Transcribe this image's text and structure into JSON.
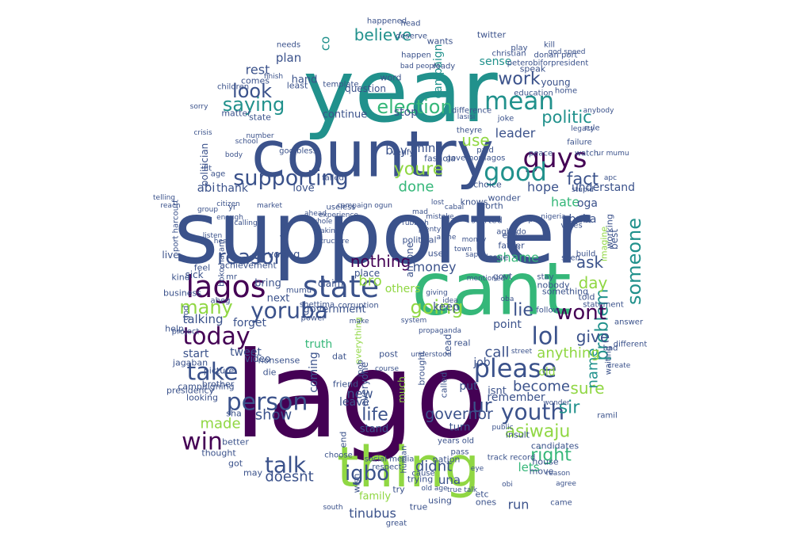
{
  "palette": {
    "dark_purple": "#440154",
    "indigo": "#3b528b",
    "slate": "#31688e",
    "teal": "#21918c",
    "green": "#35b779",
    "lime": "#90d743",
    "yellow": "#c9e020"
  },
  "words": [
    {
      "text": "lago",
      "color": "dark_purple"
    },
    {
      "text": "supporter",
      "color": "indigo"
    },
    {
      "text": "year",
      "color": "teal"
    },
    {
      "text": "country",
      "color": "indigo"
    },
    {
      "text": "cant",
      "color": "green"
    },
    {
      "text": "thing",
      "color": "lime"
    },
    {
      "text": "state",
      "color": "indigo"
    },
    {
      "text": "lagos",
      "color": "dark_purple"
    },
    {
      "text": "supporting",
      "color": "indigo"
    },
    {
      "text": "person",
      "color": "indigo"
    },
    {
      "text": "youth",
      "color": "indigo"
    },
    {
      "text": "please",
      "color": "indigo"
    },
    {
      "text": "yoruba",
      "color": "indigo"
    },
    {
      "text": "today",
      "color": "dark_purple"
    },
    {
      "text": "take",
      "color": "indigo"
    },
    {
      "text": "guys",
      "color": "dark_purple"
    },
    {
      "text": "good",
      "color": "teal"
    },
    {
      "text": "mean",
      "color": "teal"
    },
    {
      "text": "lol",
      "color": "indigo"
    },
    {
      "text": "igbo",
      "color": "indigo"
    },
    {
      "text": "win",
      "color": "dark_purple"
    },
    {
      "text": "election",
      "color": "green"
    },
    {
      "text": "saying",
      "color": "teal"
    },
    {
      "text": "reason",
      "color": "indigo"
    },
    {
      "text": "someone",
      "color": "teal"
    },
    {
      "text": "problem",
      "color": "teal"
    },
    {
      "text": "work",
      "color": "indigo"
    },
    {
      "text": "look",
      "color": "indigo"
    },
    {
      "text": "many",
      "color": "lime"
    },
    {
      "text": "talk",
      "color": "indigo"
    },
    {
      "text": "going",
      "color": "lime"
    },
    {
      "text": "wont",
      "color": "dark_purple"
    },
    {
      "text": "nothing",
      "color": "dark_purple"
    },
    {
      "text": "youre",
      "color": "lime"
    },
    {
      "text": "believe",
      "color": "teal"
    },
    {
      "text": "politic",
      "color": "teal"
    },
    {
      "text": "fact",
      "color": "indigo"
    },
    {
      "text": "show",
      "color": "indigo"
    },
    {
      "text": "life",
      "color": "indigo"
    },
    {
      "text": "asiwaju",
      "color": "lime"
    },
    {
      "text": "sir",
      "color": "teal"
    },
    {
      "text": "right",
      "color": "green"
    },
    {
      "text": "become",
      "color": "indigo"
    },
    {
      "text": "sure",
      "color": "lime"
    },
    {
      "text": "lie",
      "color": "indigo"
    },
    {
      "text": "day",
      "color": "lime"
    },
    {
      "text": "ask",
      "color": "indigo"
    },
    {
      "text": "give",
      "color": "indigo"
    },
    {
      "text": "name",
      "color": "teal"
    },
    {
      "text": "anything",
      "color": "lime"
    },
    {
      "text": "bro",
      "color": "lime"
    },
    {
      "text": "call",
      "color": "indigo"
    },
    {
      "text": "done",
      "color": "green"
    },
    {
      "text": "use",
      "color": "lime"
    },
    {
      "text": "governor",
      "color": "indigo"
    },
    {
      "text": "made",
      "color": "lime"
    },
    {
      "text": "doesnt",
      "color": "indigo"
    },
    {
      "text": "didnt",
      "color": "indigo"
    },
    {
      "text": "tinubus",
      "color": "indigo"
    },
    {
      "text": "new",
      "color": "indigo"
    },
    {
      "text": "ur",
      "color": "indigo"
    },
    {
      "text": "co",
      "color": "teal"
    },
    {
      "text": "rest",
      "color": "indigo"
    },
    {
      "text": "plan",
      "color": "indigo"
    },
    {
      "text": "hope",
      "color": "indigo"
    },
    {
      "text": "abi",
      "color": "indigo"
    },
    {
      "text": "leader",
      "color": "indigo"
    },
    {
      "text": "hate",
      "color": "green"
    },
    {
      "text": "sense",
      "color": "teal"
    },
    {
      "text": "campaign",
      "color": "teal"
    },
    {
      "text": "mind",
      "color": "indigo"
    },
    {
      "text": "boy",
      "color": "indigo"
    },
    {
      "text": "talking",
      "color": "indigo"
    },
    {
      "text": "forget",
      "color": "indigo"
    },
    {
      "text": "start",
      "color": "indigo"
    },
    {
      "text": "tweet",
      "color": "indigo"
    },
    {
      "text": "money",
      "color": "indigo"
    },
    {
      "text": "shame",
      "color": "green"
    },
    {
      "text": "baba",
      "color": "indigo"
    },
    {
      "text": "oga",
      "color": "indigo"
    },
    {
      "text": "understand",
      "color": "indigo"
    },
    {
      "text": "old",
      "color": "lime"
    },
    {
      "text": "truth",
      "color": "green"
    },
    {
      "text": "stop",
      "color": "indigo"
    },
    {
      "text": "continue",
      "color": "indigo"
    },
    {
      "text": "hand",
      "color": "indigo"
    },
    {
      "text": "thank",
      "color": "indigo"
    },
    {
      "text": "love",
      "color": "indigo"
    },
    {
      "text": "voting",
      "color": "indigo"
    },
    {
      "text": "others",
      "color": "lime"
    },
    {
      "text": "keep",
      "color": "indigo"
    },
    {
      "text": "coming",
      "color": "indigo"
    },
    {
      "text": "leave",
      "color": "indigo"
    },
    {
      "text": "stand",
      "color": "indigo"
    },
    {
      "text": "turn",
      "color": "indigo"
    },
    {
      "text": "lets",
      "color": "green"
    },
    {
      "text": "run",
      "color": "indigo"
    },
    {
      "text": "una",
      "color": "indigo"
    },
    {
      "text": "family",
      "color": "lime"
    },
    {
      "text": "isnt",
      "color": "indigo"
    },
    {
      "text": "remember",
      "color": "indigo"
    },
    {
      "text": "job",
      "color": "indigo"
    },
    {
      "text": "put",
      "color": "indigo"
    },
    {
      "text": "point",
      "color": "indigo"
    },
    {
      "text": "government",
      "color": "indigo"
    },
    {
      "text": "bring",
      "color": "indigo"
    },
    {
      "text": "next",
      "color": "indigo"
    },
    {
      "text": "everyone",
      "color": "indigo"
    },
    {
      "text": "video",
      "color": "indigo"
    },
    {
      "text": "politician",
      "color": "indigo"
    },
    {
      "text": "claim",
      "color": "indigo"
    },
    {
      "text": "place",
      "color": "indigo"
    },
    {
      "text": "sick",
      "color": "indigo"
    },
    {
      "text": "live",
      "color": "indigo"
    },
    {
      "text": "kind",
      "color": "indigo"
    },
    {
      "text": "achievement",
      "color": "indigo"
    },
    {
      "text": "business",
      "color": "indigo"
    },
    {
      "text": "help",
      "color": "indigo"
    },
    {
      "text": "jagaban",
      "color": "indigo"
    },
    {
      "text": "presidency",
      "color": "indigo"
    },
    {
      "text": "young",
      "color": "indigo"
    },
    {
      "text": "state",
      "color": "indigo"
    },
    {
      "text": "matter",
      "color": "indigo"
    },
    {
      "text": "question",
      "color": "indigo"
    },
    {
      "text": "word",
      "color": "indigo"
    },
    {
      "text": "least",
      "color": "indigo"
    },
    {
      "text": "comes",
      "color": "indigo"
    },
    {
      "text": "twitter",
      "color": "indigo"
    },
    {
      "text": "wants",
      "color": "indigo"
    },
    {
      "text": "speak",
      "color": "indigo"
    },
    {
      "text": "fashola",
      "color": "indigo"
    },
    {
      "text": "choice",
      "color": "indigo"
    },
    {
      "text": "wonder",
      "color": "indigo"
    },
    {
      "text": "north",
      "color": "indigo"
    },
    {
      "text": "started",
      "color": "indigo"
    },
    {
      "text": "knows",
      "color": "indigo"
    },
    {
      "text": "evil",
      "color": "indigo"
    },
    {
      "text": "father",
      "color": "indigo"
    },
    {
      "text": "best",
      "color": "indigo"
    },
    {
      "text": "imagine",
      "color": "lime"
    },
    {
      "text": "working",
      "color": "indigo"
    },
    {
      "text": "something",
      "color": "indigo"
    },
    {
      "text": "told",
      "color": "indigo"
    },
    {
      "text": "nobody",
      "color": "indigo"
    },
    {
      "text": "political",
      "color": "indigo"
    },
    {
      "text": "govt",
      "color": "indigo"
    },
    {
      "text": "issue",
      "color": "indigo"
    },
    {
      "text": "used",
      "color": "indigo"
    },
    {
      "text": "read",
      "color": "indigo"
    },
    {
      "text": "anyone",
      "color": "indigo"
    },
    {
      "text": "everything",
      "color": "lime"
    },
    {
      "text": "brought",
      "color": "indigo"
    },
    {
      "text": "called",
      "color": "indigo"
    },
    {
      "text": "much",
      "color": "lime"
    },
    {
      "text": "real",
      "color": "indigo"
    },
    {
      "text": "post",
      "color": "indigo"
    },
    {
      "text": "insult",
      "color": "indigo"
    },
    {
      "text": "candidates",
      "color": "indigo"
    },
    {
      "text": "house",
      "color": "indigo"
    },
    {
      "text": "move",
      "color": "indigo"
    },
    {
      "text": "trying",
      "color": "indigo"
    },
    {
      "text": "using",
      "color": "indigo"
    },
    {
      "text": "try",
      "color": "indigo"
    },
    {
      "text": "etc",
      "color": "indigo"
    },
    {
      "text": "ones",
      "color": "indigo"
    },
    {
      "text": "true",
      "color": "indigo"
    },
    {
      "text": "nation",
      "color": "indigo"
    },
    {
      "text": "sha",
      "color": "indigo"
    },
    {
      "text": "better",
      "color": "indigo"
    },
    {
      "text": "thought",
      "color": "indigo"
    },
    {
      "text": "got",
      "color": "indigo"
    },
    {
      "text": "may",
      "color": "indigo"
    },
    {
      "text": "end",
      "color": "indigo"
    },
    {
      "text": "wish",
      "color": "indigo"
    },
    {
      "text": "looking",
      "color": "indigo"
    },
    {
      "text": "campaigning",
      "color": "indigo"
    },
    {
      "text": "brother",
      "color": "indigo"
    },
    {
      "text": "picture",
      "color": "indigo"
    },
    {
      "text": "die",
      "color": "indigo"
    },
    {
      "text": "friend",
      "color": "indigo"
    },
    {
      "text": "dat",
      "color": "indigo"
    },
    {
      "text": "nonsense",
      "color": "indigo"
    },
    {
      "text": "feel",
      "color": "indigo"
    },
    {
      "text": "fit",
      "color": "indigo"
    },
    {
      "text": "age",
      "color": "indigo"
    },
    {
      "text": "failed",
      "color": "indigo"
    },
    {
      "text": "paid",
      "color": "indigo"
    },
    {
      "text": "ipob",
      "color": "indigo"
    },
    {
      "text": "anambra",
      "color": "indigo"
    },
    {
      "text": "boko haram",
      "color": "indigo"
    },
    {
      "text": "port harcourt",
      "color": "indigo"
    },
    {
      "text": "god",
      "color": "indigo"
    },
    {
      "text": "power",
      "color": "indigo"
    },
    {
      "text": "shettima",
      "color": "indigo"
    },
    {
      "text": "mumu",
      "color": "indigo"
    },
    {
      "text": "follow",
      "color": "indigo"
    },
    {
      "text": "statement",
      "color": "indigo"
    },
    {
      "text": "different",
      "color": "indigo"
    },
    {
      "text": "waiting",
      "color": "indigo"
    },
    {
      "text": "rule",
      "color": "indigo"
    },
    {
      "text": "failure",
      "color": "indigo"
    },
    {
      "text": "peace",
      "color": "indigo"
    },
    {
      "text": "governor lagos",
      "color": "indigo"
    },
    {
      "text": "theyre",
      "color": "indigo"
    },
    {
      "text": "verify",
      "color": "indigo"
    },
    {
      "text": "happen",
      "color": "indigo"
    },
    {
      "text": "happened",
      "color": "indigo"
    },
    {
      "text": "ready",
      "color": "indigo"
    },
    {
      "text": "home",
      "color": "indigo"
    },
    {
      "text": "education",
      "color": "indigo"
    },
    {
      "text": "children",
      "color": "indigo"
    },
    {
      "text": "needs",
      "color": "indigo"
    },
    {
      "text": "christian",
      "color": "indigo"
    },
    {
      "text": "difference",
      "color": "indigo"
    },
    {
      "text": "template",
      "color": "indigo"
    },
    {
      "text": "god bless",
      "color": "indigo"
    },
    {
      "text": "yr",
      "color": "indigo"
    },
    {
      "text": "useless",
      "color": "indigo"
    },
    {
      "text": "corruption",
      "color": "indigo"
    },
    {
      "text": "project",
      "color": "indigo"
    },
    {
      "text": "mr",
      "color": "indigo"
    },
    {
      "text": "abeg",
      "color": "indigo"
    },
    {
      "text": "oh",
      "color": "indigo"
    },
    {
      "text": "agbado",
      "color": "indigo"
    },
    {
      "text": "came",
      "color": "indigo"
    },
    {
      "text": "pass",
      "color": "indigo"
    },
    {
      "text": "years old",
      "color": "indigo"
    },
    {
      "text": "human",
      "color": "indigo"
    },
    {
      "text": "cause",
      "color": "indigo"
    },
    {
      "text": "social media",
      "color": "indigo"
    },
    {
      "text": "choose",
      "color": "indigo"
    },
    {
      "text": "respect",
      "color": "indigo"
    },
    {
      "text": "build",
      "color": "indigo"
    },
    {
      "text": "great",
      "color": "indigo"
    },
    {
      "text": "track record",
      "color": "indigo"
    },
    {
      "text": "ramil",
      "color": "indigo"
    },
    {
      "text": "bad",
      "color": "indigo"
    },
    {
      "text": "answer",
      "color": "indigo"
    },
    {
      "text": "seen",
      "color": "indigo"
    },
    {
      "text": "stay",
      "color": "indigo"
    },
    {
      "text": "votes",
      "color": "indigo"
    },
    {
      "text": "watch",
      "color": "indigo"
    },
    {
      "text": "joke",
      "color": "indigo"
    },
    {
      "text": "kill",
      "color": "indigo"
    },
    {
      "text": "deserve",
      "color": "indigo"
    },
    {
      "text": "head",
      "color": "indigo"
    },
    {
      "text": "play",
      "color": "indigo"
    },
    {
      "text": "peterobiforpresident",
      "color": "indigo"
    },
    {
      "text": "donan port",
      "color": "indigo"
    },
    {
      "text": "body",
      "color": "indigo"
    },
    {
      "text": "finish",
      "color": "indigo"
    },
    {
      "text": "bad people",
      "color": "indigo"
    },
    {
      "text": "god speed",
      "color": "indigo"
    },
    {
      "text": "crisis",
      "color": "indigo"
    },
    {
      "text": "legacy",
      "color": "indigo"
    },
    {
      "text": "create",
      "color": "indigo"
    },
    {
      "text": "stupid",
      "color": "indigo"
    },
    {
      "text": "obi",
      "color": "indigo"
    },
    {
      "text": "agree",
      "color": "indigo"
    },
    {
      "text": "south",
      "color": "indigo"
    },
    {
      "text": "true talk",
      "color": "indigo"
    },
    {
      "text": "old age",
      "color": "indigo"
    },
    {
      "text": "telling",
      "color": "indigo"
    },
    {
      "text": "reach",
      "color": "indigo"
    },
    {
      "text": "group",
      "color": "indigo"
    },
    {
      "text": "idea",
      "color": "indigo"
    },
    {
      "text": "street",
      "color": "indigo"
    },
    {
      "text": "wonder",
      "color": "indigo"
    },
    {
      "text": "mentioned",
      "color": "indigo"
    },
    {
      "text": "nigeria",
      "color": "indigo"
    },
    {
      "text": "pdp",
      "color": "indigo"
    },
    {
      "text": "apc",
      "color": "indigo"
    },
    {
      "text": "ur mumu",
      "color": "indigo"
    },
    {
      "text": "anybody",
      "color": "indigo"
    },
    {
      "text": "lasisi",
      "color": "indigo"
    },
    {
      "text": "campaign ogun",
      "color": "indigo"
    },
    {
      "text": "experience",
      "color": "indigo"
    },
    {
      "text": "giving",
      "color": "indigo"
    },
    {
      "text": "propaganda",
      "color": "indigo"
    },
    {
      "text": "make",
      "color": "indigo"
    },
    {
      "text": "system",
      "color": "indigo"
    },
    {
      "text": "understood",
      "color": "indigo"
    },
    {
      "text": "course",
      "color": "indigo"
    },
    {
      "text": "number",
      "color": "indigo"
    },
    {
      "text": "school",
      "color": "indigo"
    },
    {
      "text": "sorry",
      "color": "indigo"
    },
    {
      "text": "structure",
      "color": "indigo"
    },
    {
      "text": "market",
      "color": "indigo"
    },
    {
      "text": "citizen",
      "color": "indigo"
    },
    {
      "text": "enough",
      "color": "indigo"
    },
    {
      "text": "listen",
      "color": "indigo"
    },
    {
      "text": "hear",
      "color": "indigo"
    },
    {
      "text": "calling",
      "color": "indigo"
    },
    {
      "text": "making",
      "color": "indigo"
    },
    {
      "text": "whole",
      "color": "indigo"
    },
    {
      "text": "ahead",
      "color": "indigo"
    },
    {
      "text": "cabal",
      "color": "indigo"
    },
    {
      "text": "public",
      "color": "indigo"
    },
    {
      "text": "eye",
      "color": "indigo"
    },
    {
      "text": "reason",
      "color": "indigo"
    },
    {
      "text": "oba",
      "color": "indigo"
    },
    {
      "text": "money",
      "color": "indigo"
    },
    {
      "text": "lost",
      "color": "indigo"
    },
    {
      "text": "mistake",
      "color": "indigo"
    },
    {
      "text": "mad",
      "color": "indigo"
    },
    {
      "text": "rubbish",
      "color": "indigo"
    },
    {
      "text": "plenty",
      "color": "indigo"
    },
    {
      "text": "alone",
      "color": "indigo"
    },
    {
      "text": "town",
      "color": "indigo"
    },
    {
      "text": "sapa",
      "color": "indigo"
    },
    {
      "text": "soro",
      "color": "indigo"
    },
    {
      "text": "dey",
      "color": "indigo"
    },
    {
      "text": "sake",
      "color": "indigo"
    },
    {
      "text": "wan",
      "color": "indigo"
    },
    {
      "text": "obidient",
      "color": "indigo"
    },
    {
      "text": "win election",
      "color": "indigo"
    },
    {
      "text": "una dey",
      "color": "indigo"
    },
    {
      "text": "tell",
      "color": "indigo"
    },
    {
      "text": "bcos",
      "color": "indigo"
    },
    {
      "text": "sit",
      "color": "indigo"
    },
    {
      "text": "fasola",
      "color": "indigo"
    },
    {
      "text": "office",
      "color": "indigo"
    },
    {
      "text": "pay",
      "color": "indigo"
    },
    {
      "text": "tax",
      "color": "indigo"
    },
    {
      "text": "vote",
      "color": "indigo"
    },
    {
      "text": "war",
      "color": "indigo"
    }
  ]
}
